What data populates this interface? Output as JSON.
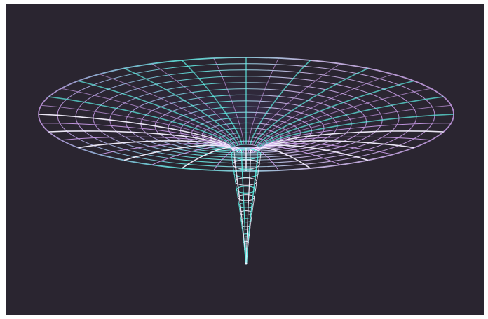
{
  "image": {
    "subject": "wormhole-funnel-wireframe",
    "colors": {
      "background": "#2a2530",
      "border": "#ffffff",
      "cyan": "#5ff0e6",
      "violet": "#c79ae6",
      "white": "#f4f0ff"
    }
  }
}
